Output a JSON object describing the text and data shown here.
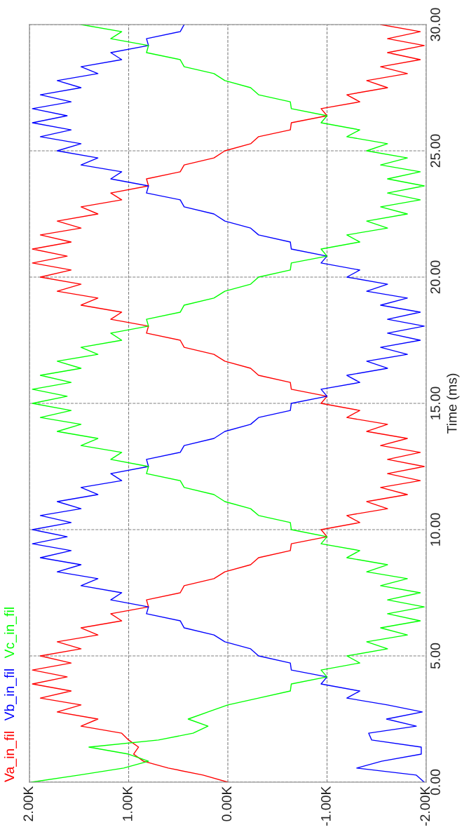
{
  "chart_data": {
    "type": "line",
    "orientation": "horizontal",
    "ylabel": "Time (ms)",
    "xlim": [
      2000,
      -2000
    ],
    "xticks": [
      {
        "value": 2000,
        "label": "2.00K"
      },
      {
        "value": 1000,
        "label": "1.00K"
      },
      {
        "value": 0,
        "label": "0.00K"
      },
      {
        "value": -1000,
        "label": "-1.00K"
      },
      {
        "value": -2000,
        "label": "-2.00K"
      }
    ],
    "ylim": [
      0,
      30
    ],
    "yticks": [
      {
        "value": 0,
        "label": "0.00"
      },
      {
        "value": 5,
        "label": "5.00"
      },
      {
        "value": 10,
        "label": "10.00"
      },
      {
        "value": 15,
        "label": "15.00"
      },
      {
        "value": 20,
        "label": "20.00"
      },
      {
        "value": 25,
        "label": "25.00"
      },
      {
        "value": 30,
        "label": "30.00"
      }
    ],
    "grid": true,
    "line_style": "solid",
    "marker": "none",
    "x": [
      0,
      0.28,
      0.56,
      0.83,
      1.11,
      1.39,
      1.67,
      1.94,
      2.22,
      2.5,
      2.78,
      3.06,
      3.33,
      3.61,
      3.89,
      4.17,
      4.44,
      4.72,
      5,
      5.28,
      5.56,
      5.83,
      6.11,
      6.39,
      6.67,
      6.94,
      7.22,
      7.5,
      7.78,
      8.06,
      8.33,
      8.61,
      8.89,
      9.17,
      9.44,
      9.72,
      10,
      10.28,
      10.56,
      10.83,
      11.11,
      11.39,
      11.67,
      11.94,
      12.22,
      12.5,
      12.78,
      13.06,
      13.33,
      13.61,
      13.89,
      14.17,
      14.44,
      14.72,
      15,
      15.28,
      15.56,
      15.83,
      16.11,
      16.39,
      16.67,
      16.94,
      17.22,
      17.5,
      17.78,
      18.06,
      18.33,
      18.61,
      18.89,
      19.17,
      19.44,
      19.72,
      20,
      20.28,
      20.56,
      20.83,
      21.11,
      21.39,
      21.67,
      21.94,
      22.22,
      22.5,
      22.78,
      23.06,
      23.33,
      23.61,
      23.89,
      24.17,
      24.44,
      24.72,
      25,
      25.28,
      25.56,
      25.83,
      26.11,
      26.39,
      26.67,
      26.94,
      27.22,
      27.5,
      27.78,
      28.06,
      28.33,
      28.61,
      28.89,
      29.17,
      29.44,
      29.72,
      30
    ],
    "series": [
      {
        "name": "Va_in_fil",
        "color": "#ff0000",
        "values": [
          0,
          250,
          600,
          850,
          950,
          900,
          1000,
          1070,
          1480,
          1310,
          1720,
          1480,
          1890,
          1580,
          1970,
          1620,
          1970,
          1580,
          1890,
          1480,
          1720,
          1310,
          1480,
          1070,
          1180,
          800,
          820,
          480,
          440,
          140,
          30,
          -230,
          -310,
          -630,
          -640,
          -1000,
          -940,
          -1330,
          -1200,
          -1610,
          -1400,
          -1810,
          -1540,
          -1940,
          -1610,
          -1980,
          -1610,
          -1940,
          -1540,
          -1810,
          -1400,
          -1610,
          -1200,
          -1330,
          -940,
          -1000,
          -640,
          -630,
          -310,
          -230,
          30,
          140,
          440,
          480,
          820,
          800,
          1180,
          1070,
          1480,
          1310,
          1720,
          1480,
          1890,
          1580,
          1970,
          1620,
          1970,
          1580,
          1890,
          1480,
          1720,
          1310,
          1480,
          1070,
          1180,
          800,
          820,
          480,
          440,
          140,
          30,
          -230,
          -310,
          -630,
          -640,
          -1000,
          -940,
          -1330,
          -1200,
          -1610,
          -1400,
          -1810,
          -1540,
          -1940,
          -1610,
          -1980,
          -1610,
          -1940,
          -1540
        ]
      },
      {
        "name": "Vb_in_fil",
        "color": "#0000ff",
        "values": [
          -1980,
          -1900,
          -1300,
          -1550,
          -1950,
          -1950,
          -1450,
          -1420,
          -1900,
          -1600,
          -1960,
          -1610,
          -1200,
          -1330,
          -940,
          -1000,
          -640,
          -630,
          -310,
          -230,
          30,
          140,
          440,
          480,
          820,
          800,
          1180,
          1070,
          1480,
          1310,
          1720,
          1480,
          1890,
          1580,
          1970,
          1620,
          1970,
          1580,
          1890,
          1480,
          1720,
          1310,
          1480,
          1070,
          1180,
          800,
          820,
          480,
          440,
          140,
          30,
          -230,
          -310,
          -630,
          -640,
          -1000,
          -940,
          -1330,
          -1200,
          -1610,
          -1400,
          -1810,
          -1540,
          -1940,
          -1610,
          -1980,
          -1610,
          -1940,
          -1540,
          -1810,
          -1400,
          -1610,
          -1200,
          -1330,
          -940,
          -1000,
          -640,
          -630,
          -310,
          -230,
          30,
          140,
          440,
          480,
          820,
          800,
          1180,
          1070,
          1480,
          1310,
          1720,
          1480,
          1890,
          1580,
          1970,
          1620,
          1970,
          1580,
          1890,
          1480,
          1720,
          1310,
          1480,
          1070,
          1180,
          800,
          820,
          480,
          440
        ]
      },
      {
        "name": "Vc_in_fil",
        "color": "#00ff00",
        "values": [
          1980,
          1500,
          1050,
          800,
          1000,
          1400,
          700,
          350,
          200,
          400,
          200,
          0,
          -310,
          -630,
          -640,
          -1000,
          -940,
          -1330,
          -1200,
          -1610,
          -1400,
          -1810,
          -1540,
          -1940,
          -1610,
          -1980,
          -1610,
          -1940,
          -1540,
          -1810,
          -1400,
          -1610,
          -1200,
          -1330,
          -940,
          -1000,
          -640,
          -630,
          -310,
          -230,
          30,
          140,
          440,
          480,
          820,
          800,
          1180,
          1070,
          1480,
          1310,
          1720,
          1480,
          1890,
          1580,
          1970,
          1620,
          1970,
          1580,
          1890,
          1480,
          1720,
          1310,
          1480,
          1070,
          1180,
          800,
          820,
          480,
          440,
          140,
          30,
          -230,
          -310,
          -630,
          -640,
          -1000,
          -940,
          -1330,
          -1200,
          -1610,
          -1400,
          -1810,
          -1540,
          -1940,
          -1610,
          -1980,
          -1610,
          -1940,
          -1540,
          -1810,
          -1400,
          -1610,
          -1200,
          -1330,
          -940,
          -1000,
          -640,
          -630,
          -310,
          -230,
          30,
          140,
          440,
          480,
          820,
          800,
          1180,
          1070,
          1480
        ]
      }
    ]
  }
}
